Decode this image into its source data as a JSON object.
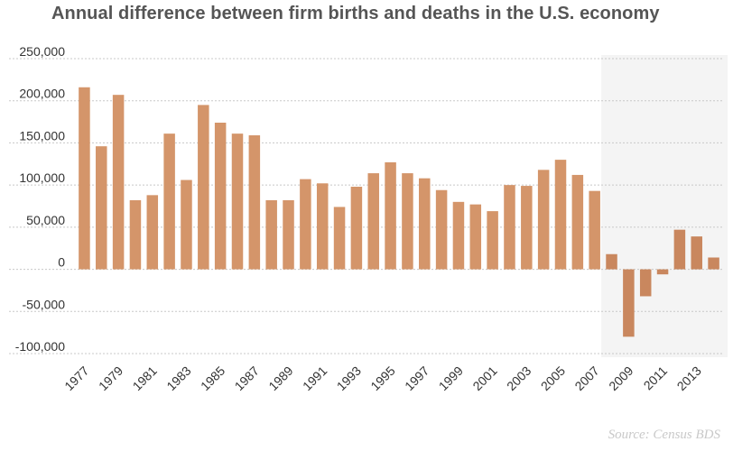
{
  "chart_data": {
    "type": "bar",
    "title": "Annual difference between firm births and deaths in the U.S. economy",
    "xlabel": "",
    "ylabel": "",
    "ylim": [
      -100000,
      250000
    ],
    "yticks": [
      250000,
      200000,
      150000,
      100000,
      50000,
      0,
      -50000,
      -100000
    ],
    "ytick_labels": [
      "250,000",
      "200,000",
      "150,000",
      "100,000",
      "50,000",
      "0",
      "-50,000",
      "-100,000"
    ],
    "categories": [
      1977,
      1978,
      1979,
      1980,
      1981,
      1982,
      1983,
      1984,
      1985,
      1986,
      1987,
      1988,
      1989,
      1990,
      1991,
      1992,
      1993,
      1994,
      1995,
      1996,
      1997,
      1998,
      1999,
      2000,
      2001,
      2002,
      2003,
      2004,
      2005,
      2006,
      2007,
      2008,
      2009,
      2010,
      2011,
      2012,
      2013,
      2014
    ],
    "xtick_labels": [
      "1977",
      "1979",
      "1981",
      "1983",
      "1985",
      "1987",
      "1989",
      "1991",
      "1993",
      "1995",
      "1997",
      "1999",
      "2001",
      "2003",
      "2005",
      "2007",
      "2009",
      "2011",
      "2013"
    ],
    "values": [
      216000,
      146000,
      207000,
      82000,
      88000,
      161000,
      106000,
      195000,
      174000,
      161000,
      159000,
      82000,
      82000,
      107000,
      102000,
      74000,
      98000,
      114000,
      127000,
      114000,
      108000,
      94000,
      80000,
      77000,
      69000,
      100000,
      99000,
      118000,
      130000,
      112000,
      93000,
      18000,
      -80000,
      -32000,
      -6000,
      47000,
      39000,
      14000
    ],
    "shaded_range": [
      2008,
      2014
    ],
    "grid": true,
    "legend": "none",
    "colors": {
      "bar": "#d4956a",
      "bar_shaded": "#c9875e",
      "shade": "#f4f4f4",
      "grid": "#c8c8c8"
    },
    "source": "Source: Census BDS"
  }
}
